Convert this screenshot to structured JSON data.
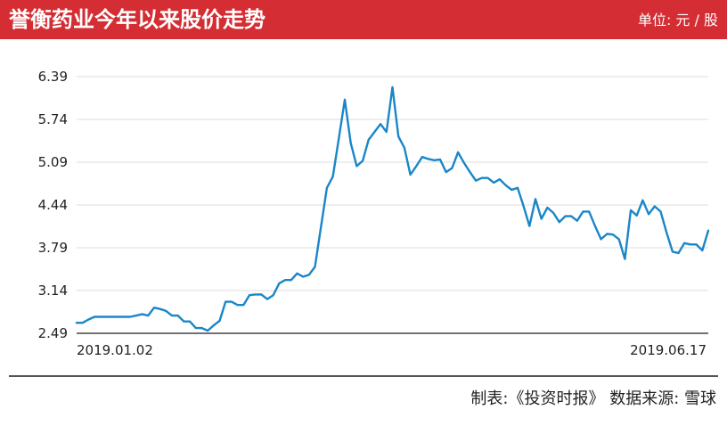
{
  "header": {
    "title": "誉衡药业今年以来股价走势",
    "unit": "单位: 元 / 股"
  },
  "footer": {
    "source": "制表:《投资时报》 数据来源: 雪球"
  },
  "colors": {
    "header_bg": "#d42e34",
    "line": "#1a86c8",
    "grid": "#dcdcdc",
    "plot_bg": "#ffffff"
  },
  "chart_data": {
    "type": "line",
    "x_start": "2019.01.02",
    "x_end": "2019.06.17",
    "ylim": [
      2.49,
      6.39
    ],
    "yticks": [
      "6.39",
      "5.74",
      "5.09",
      "4.44",
      "3.79",
      "3.14",
      "2.49"
    ],
    "grid": true,
    "series": [
      {
        "values": [
          2.65,
          2.65,
          2.7,
          2.74,
          2.74,
          2.74,
          2.74,
          2.74,
          2.74,
          2.74,
          2.76,
          2.78,
          2.76,
          2.88,
          2.86,
          2.83,
          2.76,
          2.76,
          2.67,
          2.67,
          2.57,
          2.57,
          2.53,
          2.61,
          2.68,
          2.97,
          2.97,
          2.92,
          2.92,
          3.07,
          3.08,
          3.08,
          3.01,
          3.07,
          3.25,
          3.3,
          3.3,
          3.4,
          3.35,
          3.38,
          3.5,
          4.1,
          4.7,
          4.87,
          5.45,
          6.04,
          5.38,
          5.03,
          5.11,
          5.43,
          5.55,
          5.67,
          5.55,
          6.23,
          5.48,
          5.31,
          4.9,
          5.03,
          5.17,
          5.14,
          5.12,
          5.13,
          4.94,
          5.0,
          5.24,
          5.08,
          4.94,
          4.81,
          4.85,
          4.85,
          4.78,
          4.83,
          4.74,
          4.67,
          4.7,
          4.42,
          4.12,
          4.53,
          4.23,
          4.4,
          4.32,
          4.18,
          4.27,
          4.27,
          4.2,
          4.34,
          4.34,
          4.12,
          3.92,
          4.0,
          3.99,
          3.92,
          3.62,
          4.36,
          4.28,
          4.51,
          4.3,
          4.42,
          4.34,
          4.02,
          3.73,
          3.71,
          3.86,
          3.84,
          3.84,
          3.75,
          4.05
        ]
      }
    ]
  }
}
